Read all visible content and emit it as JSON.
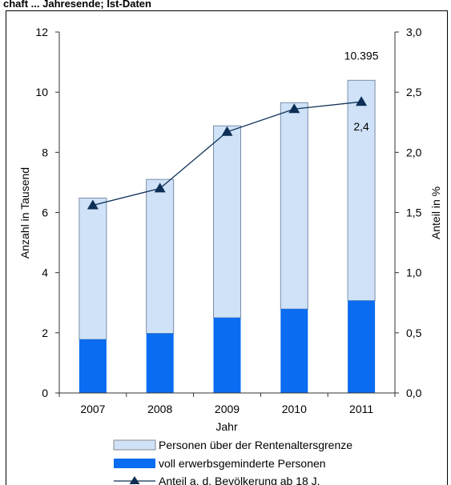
{
  "page": {
    "heading_fragment": "chaft ... Jahresende; Ist-Daten"
  },
  "chart_data": {
    "type": "bar",
    "stacked": true,
    "categories": [
      "2007",
      "2008",
      "2009",
      "2010",
      "2011"
    ],
    "xlabel": "Jahr",
    "ylabel": "Anzahl in Tausend",
    "y2label": "Anteil in %",
    "ylim": [
      0,
      12
    ],
    "y2lim": [
      0,
      3
    ],
    "yticks": [
      "0",
      "2",
      "4",
      "6",
      "8",
      "10",
      "12"
    ],
    "y2ticks": [
      "0,0",
      "0,5",
      "1,0",
      "1,5",
      "2,0",
      "2,5",
      "3,0"
    ],
    "grid": false,
    "legend_position": "bottom",
    "series": [
      {
        "name": "voll erwerbsgeminderte Personen",
        "type": "bar",
        "axis": "left",
        "color": "#0a6cf0",
        "values": [
          1.78,
          1.98,
          2.5,
          2.79,
          3.07
        ]
      },
      {
        "name": "Personen über der Rentenaltersgrenze",
        "type": "bar",
        "axis": "left",
        "color": "#cfe2f8",
        "values": [
          4.7,
          5.12,
          6.38,
          6.86,
          7.325
        ]
      },
      {
        "name": "Anteil a. d. Bevölkerung ab 18 J.",
        "type": "line",
        "axis": "right",
        "color": "#0d2f55",
        "values": [
          1.56,
          1.7,
          2.17,
          2.36,
          2.42
        ]
      }
    ],
    "annotations": [
      {
        "text": "10.395",
        "category": "2011",
        "value": 10.395,
        "axis": "left"
      },
      {
        "text": "2,4",
        "category": "2011",
        "value": 2.42,
        "axis": "right"
      }
    ]
  }
}
